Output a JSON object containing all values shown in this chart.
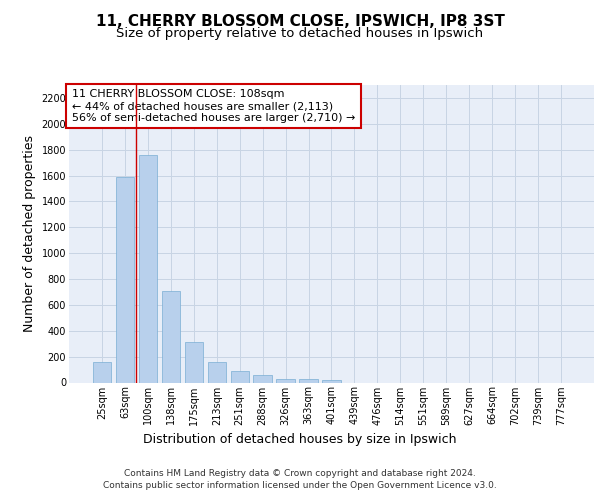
{
  "title_line1": "11, CHERRY BLOSSOM CLOSE, IPSWICH, IP8 3ST",
  "title_line2": "Size of property relative to detached houses in Ipswich",
  "xlabel": "Distribution of detached houses by size in Ipswich",
  "ylabel": "Number of detached properties",
  "categories": [
    "25sqm",
    "63sqm",
    "100sqm",
    "138sqm",
    "175sqm",
    "213sqm",
    "251sqm",
    "288sqm",
    "326sqm",
    "363sqm",
    "401sqm",
    "439sqm",
    "476sqm",
    "514sqm",
    "551sqm",
    "589sqm",
    "627sqm",
    "664sqm",
    "702sqm",
    "739sqm",
    "777sqm"
  ],
  "bar_values": [
    155,
    1590,
    1760,
    710,
    315,
    160,
    90,
    55,
    30,
    25,
    20,
    0,
    0,
    0,
    0,
    0,
    0,
    0,
    0,
    0,
    0
  ],
  "bar_color": "#b8d0ec",
  "bar_edge_color": "#7aaed4",
  "grid_color": "#c8d4e4",
  "background_color": "#e8eef8",
  "annotation_text": "11 CHERRY BLOSSOM CLOSE: 108sqm\n← 44% of detached houses are smaller (2,113)\n56% of semi-detached houses are larger (2,710) →",
  "annotation_box_facecolor": "#ffffff",
  "annotation_border_color": "#cc0000",
  "vline_color": "#cc0000",
  "vline_x": 1.5,
  "ylim_max": 2300,
  "yticks": [
    0,
    200,
    400,
    600,
    800,
    1000,
    1200,
    1400,
    1600,
    1800,
    2000,
    2200
  ],
  "footer_text": "Contains HM Land Registry data © Crown copyright and database right 2024.\nContains public sector information licensed under the Open Government Licence v3.0.",
  "title_fontsize": 11,
  "subtitle_fontsize": 9.5,
  "axis_label_fontsize": 9,
  "tick_fontsize": 7,
  "annotation_fontsize": 8,
  "footer_fontsize": 6.5
}
